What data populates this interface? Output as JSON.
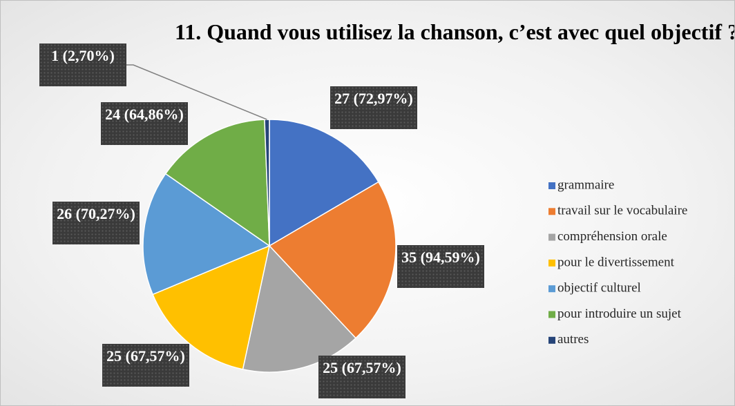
{
  "chart_data": {
    "type": "pie",
    "title": "11. Quand vous utilisez la chanson, c’est avec quel objectif ?",
    "categories": [
      "grammaire",
      "travail sur le vocabulaire",
      "compréhension orale",
      "pour le divertissement",
      "objectif culturel",
      "pour introduire un sujet",
      "autres"
    ],
    "values": [
      27,
      35,
      25,
      25,
      26,
      24,
      1
    ],
    "value_labels": [
      "27 (72,97%)",
      "35 (94,59%)",
      "25 (67,57%)",
      "25 (67,57%)",
      "26 (70,27%)",
      "24 (64,86%)",
      "1 (2,70%)"
    ],
    "colors": [
      "#4472c4",
      "#ed7d31",
      "#a5a5a5",
      "#ffc000",
      "#5b9bd5",
      "#70ad47",
      "#264478"
    ],
    "legend": "right"
  }
}
